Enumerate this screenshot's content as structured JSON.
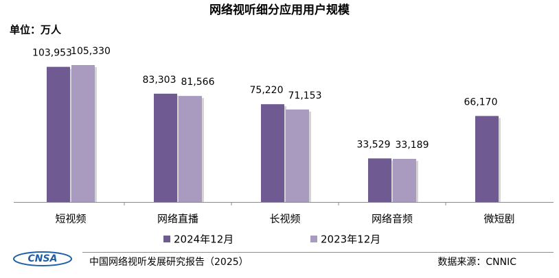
{
  "chart_data": {
    "type": "bar",
    "title": "网络视听细分应用用户规模",
    "unit_label": "单位：万人",
    "categories": [
      "短视频",
      "网络直播",
      "长视频",
      "网络音频",
      "微短剧"
    ],
    "series": [
      {
        "name": "2024年12月",
        "color": "#6f5a91",
        "values": [
          103953,
          83303,
          75220,
          33529,
          66170
        ],
        "value_labels": [
          "103,953",
          "83,303",
          "75,220",
          "33,529",
          "66,170"
        ]
      },
      {
        "name": "2023年12月",
        "color": "#a99bc0",
        "values": [
          105330,
          81566,
          71153,
          33189,
          null
        ],
        "value_labels": [
          "105,330",
          "81,566",
          "71,153",
          "33,189",
          null
        ]
      }
    ],
    "footer": {
      "logo": "CNSA",
      "report": "中国网络视听发展研究报告（2025）",
      "source": "数据来源：CNNIC"
    }
  }
}
